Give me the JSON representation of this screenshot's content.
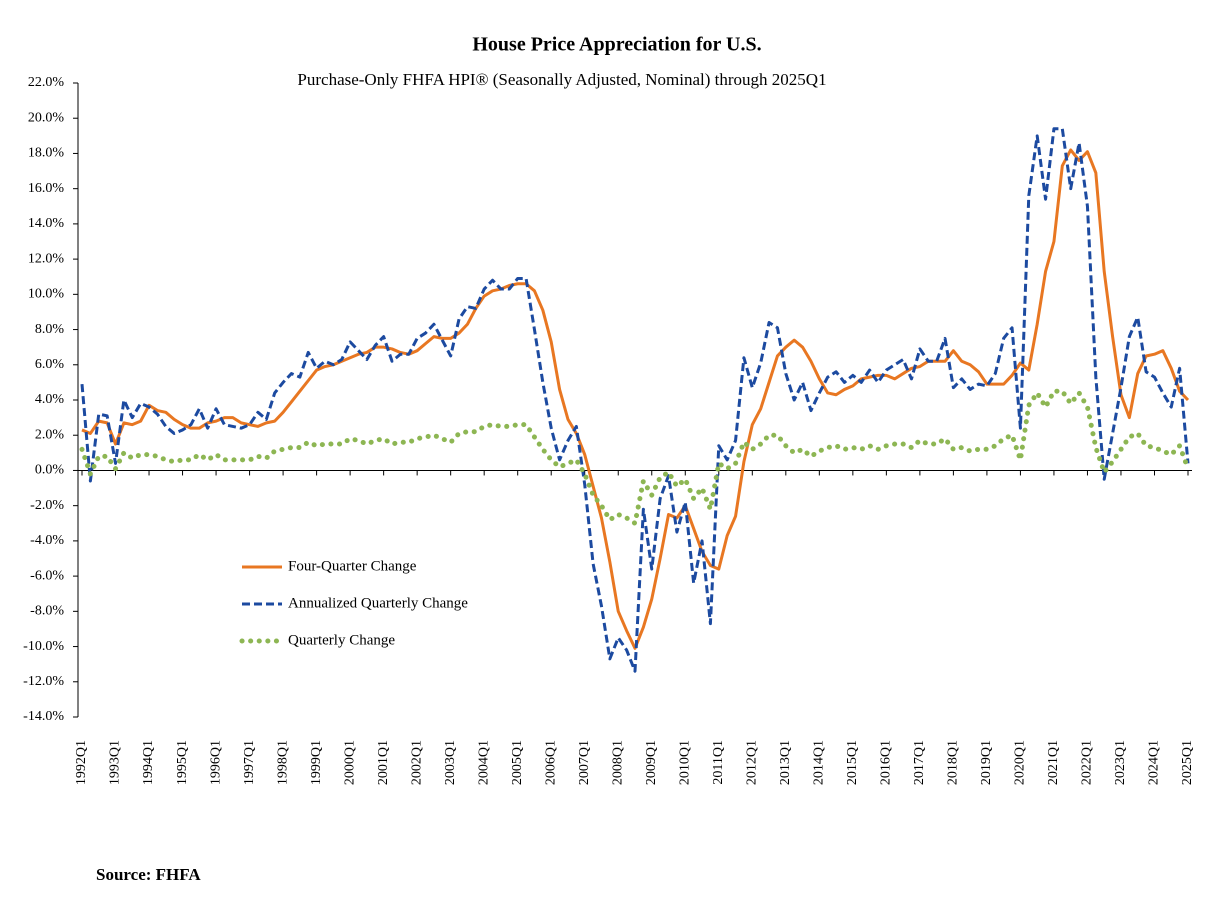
{
  "chart_data": {
    "type": "line",
    "title": "House Price Appreciation for U.S.",
    "subtitle": "Purchase-Only FHFA HPI® (Seasonally Adjusted, Nominal) through 2025Q1",
    "source": "Source:  FHFA",
    "legend": "lower left",
    "categories": [
      "1992Q1",
      null,
      null,
      null,
      "1993Q1",
      null,
      null,
      null,
      "1994Q1",
      null,
      null,
      null,
      "1995Q1",
      null,
      null,
      null,
      "1996Q1",
      null,
      null,
      null,
      "1997Q1",
      null,
      null,
      null,
      "1998Q1",
      null,
      null,
      null,
      "1999Q1",
      null,
      null,
      null,
      "2000Q1",
      null,
      null,
      null,
      "2001Q1",
      null,
      null,
      null,
      "2002Q1",
      null,
      null,
      null,
      "2003Q1",
      null,
      null,
      null,
      "2004Q1",
      null,
      null,
      null,
      "2005Q1",
      null,
      null,
      null,
      "2006Q1",
      null,
      null,
      null,
      "2007Q1",
      null,
      null,
      null,
      "2008Q1",
      null,
      null,
      null,
      "2009Q1",
      null,
      null,
      null,
      "2010Q1",
      null,
      null,
      null,
      "2011Q1",
      null,
      null,
      null,
      "2012Q1",
      null,
      null,
      null,
      "2013Q1",
      null,
      null,
      null,
      "2014Q1",
      null,
      null,
      null,
      "2015Q1",
      null,
      null,
      null,
      "2016Q1",
      null,
      null,
      null,
      "2017Q1",
      null,
      null,
      null,
      "2018Q1",
      null,
      null,
      null,
      "2019Q1",
      null,
      null,
      null,
      "2020Q1",
      null,
      null,
      null,
      "2021Q1",
      null,
      null,
      null,
      "2022Q1",
      null,
      null,
      null,
      "2023Q1",
      null,
      null,
      null,
      "2024Q1",
      null,
      null,
      null,
      "2025Q1"
    ],
    "ylim": [
      -14,
      22
    ],
    "yticks": [
      {
        "value": 22,
        "label": "22.0%"
      },
      {
        "value": 20,
        "label": "20.0%"
      },
      {
        "value": 18,
        "label": "18.0%"
      },
      {
        "value": 16,
        "label": "16.0%"
      },
      {
        "value": 14,
        "label": "14.0%"
      },
      {
        "value": 12,
        "label": "12.0%"
      },
      {
        "value": 10,
        "label": "10.0%"
      },
      {
        "value": 8,
        "label": "8.0%"
      },
      {
        "value": 6,
        "label": "6.0%"
      },
      {
        "value": 4,
        "label": "4.0%"
      },
      {
        "value": 2,
        "label": "2.0%"
      },
      {
        "value": 0,
        "label": "0.0%"
      },
      {
        "value": -2,
        "label": "-2.0%"
      },
      {
        "value": -4,
        "label": "-4.0%"
      },
      {
        "value": -6,
        "label": "-6.0%"
      },
      {
        "value": -8,
        "label": "-8.0%"
      },
      {
        "value": -10,
        "label": "-10.0%"
      },
      {
        "value": -12,
        "label": "-12.0%"
      },
      {
        "value": -14,
        "label": "-14.0%"
      }
    ],
    "series": [
      {
        "name": "Four-Quarter Change",
        "color": "#e87722",
        "dash": "solid",
        "values": [
          2.3,
          2.1,
          2.8,
          2.7,
          1.5,
          2.7,
          2.6,
          2.8,
          3.7,
          3.4,
          3.3,
          2.9,
          2.6,
          2.4,
          2.4,
          2.7,
          2.8,
          3.0,
          3.0,
          2.7,
          2.6,
          2.5,
          2.7,
          2.8,
          3.3,
          3.9,
          4.5,
          5.1,
          5.7,
          5.9,
          6.0,
          6.2,
          6.4,
          6.6,
          6.7,
          7.0,
          7.0,
          6.9,
          6.7,
          6.6,
          6.8,
          7.2,
          7.6,
          7.5,
          7.5,
          7.8,
          8.3,
          9.2,
          9.9,
          10.2,
          10.3,
          10.5,
          10.6,
          10.6,
          10.2,
          9.1,
          7.3,
          4.6,
          2.9,
          2.1,
          0.9,
          -0.9,
          -2.7,
          -5.2,
          -8.0,
          -9.1,
          -10.1,
          -8.9,
          -7.3,
          -5.0,
          -2.5,
          -2.7,
          -2.0,
          -3.3,
          -4.6,
          -5.4,
          -5.6,
          -3.7,
          -2.6,
          0.5,
          2.6,
          3.5,
          5.0,
          6.5,
          7.0,
          7.4,
          7.0,
          6.2,
          5.2,
          4.4,
          4.3,
          4.6,
          4.8,
          5.2,
          5.3,
          5.4,
          5.4,
          5.2,
          5.5,
          5.8,
          5.9,
          6.2,
          6.2,
          6.2,
          6.8,
          6.2,
          6.0,
          5.6,
          4.9,
          4.9,
          4.9,
          5.4,
          6.1,
          5.7,
          8.3,
          11.3,
          13.0,
          17.3,
          18.2,
          17.6,
          18.1,
          16.9,
          11.3,
          7.6,
          4.3,
          3.0,
          5.5,
          6.5,
          6.6,
          6.8,
          5.8,
          4.5,
          4.0
        ]
      },
      {
        "name": "Annualized Quarterly Change",
        "color": "#1c4aa0",
        "dash": "dashed",
        "values": [
          4.9,
          -0.6,
          3.2,
          3.1,
          0.4,
          4.0,
          3.0,
          3.8,
          3.6,
          3.2,
          2.5,
          2.1,
          2.3,
          2.6,
          3.5,
          2.4,
          3.5,
          2.6,
          2.5,
          2.4,
          2.6,
          3.3,
          2.9,
          4.4,
          5.0,
          5.5,
          5.3,
          6.7,
          5.8,
          6.2,
          6.0,
          6.3,
          7.3,
          6.8,
          6.3,
          7.1,
          7.6,
          6.2,
          6.6,
          6.6,
          7.5,
          7.8,
          8.3,
          7.4,
          6.5,
          8.6,
          9.3,
          9.2,
          10.3,
          10.8,
          10.3,
          10.3,
          10.9,
          10.9,
          8.0,
          5.0,
          2.4,
          0.6,
          1.7,
          2.5,
          -0.8,
          -5.3,
          -7.7,
          -10.7,
          -9.5,
          -10.2,
          -11.4,
          -2.2,
          -5.6,
          -1.6,
          -0.3,
          -3.5,
          -1.8,
          -6.4,
          -4.0,
          -8.7,
          1.4,
          0.6,
          1.7,
          6.4,
          4.7,
          6.1,
          8.4,
          8.1,
          5.5,
          4.0,
          5.0,
          3.4,
          4.4,
          5.3,
          5.6,
          5.0,
          5.4,
          5.0,
          5.7,
          5.0,
          5.7,
          6.0,
          6.3,
          5.2,
          6.9,
          6.2,
          6.2,
          7.5,
          4.7,
          5.2,
          4.6,
          4.9,
          4.8,
          5.5,
          7.5,
          8.1,
          2.4,
          15.6,
          19.0,
          15.4,
          19.4,
          19.4,
          16.0,
          18.6,
          15.0,
          5.3,
          -0.5,
          2.1,
          4.7,
          7.6,
          8.7,
          5.6,
          5.3,
          4.4,
          3.6,
          5.8,
          0.4
        ]
      },
      {
        "name": "Quarterly Change",
        "color": "#8db653",
        "dash": "dotted",
        "values": [
          1.2,
          -0.2,
          0.8,
          0.8,
          0.1,
          1.0,
          0.7,
          0.9,
          0.9,
          0.8,
          0.6,
          0.5,
          0.6,
          0.6,
          0.9,
          0.6,
          0.9,
          0.6,
          0.6,
          0.6,
          0.6,
          0.8,
          0.7,
          1.1,
          1.2,
          1.3,
          1.3,
          1.6,
          1.4,
          1.5,
          1.5,
          1.5,
          1.8,
          1.7,
          1.5,
          1.7,
          1.8,
          1.5,
          1.6,
          1.6,
          1.8,
          1.9,
          2.0,
          1.8,
          1.6,
          2.1,
          2.2,
          2.2,
          2.5,
          2.6,
          2.5,
          2.5,
          2.6,
          2.6,
          1.9,
          1.2,
          0.6,
          0.2,
          0.4,
          0.6,
          -0.2,
          -1.4,
          -2.0,
          -2.8,
          -2.5,
          -2.7,
          -3.0,
          -0.6,
          -1.4,
          -0.4,
          -0.1,
          -0.9,
          -0.5,
          -1.6,
          -1.0,
          -2.2,
          0.4,
          0.1,
          0.4,
          1.6,
          1.2,
          1.5,
          2.0,
          2.0,
          1.4,
          1.0,
          1.2,
          0.8,
          1.1,
          1.3,
          1.4,
          1.2,
          1.3,
          1.2,
          1.4,
          1.2,
          1.4,
          1.5,
          1.5,
          1.3,
          1.7,
          1.5,
          1.5,
          1.8,
          1.2,
          1.3,
          1.1,
          1.2,
          1.2,
          1.4,
          1.8,
          2.0,
          0.6,
          3.7,
          4.4,
          3.6,
          4.5,
          4.5,
          3.8,
          4.4,
          3.6,
          1.3,
          -0.1,
          0.5,
          1.2,
          1.9,
          2.1,
          1.4,
          1.3,
          1.1,
          0.9,
          1.4,
          0.1
        ]
      }
    ]
  }
}
